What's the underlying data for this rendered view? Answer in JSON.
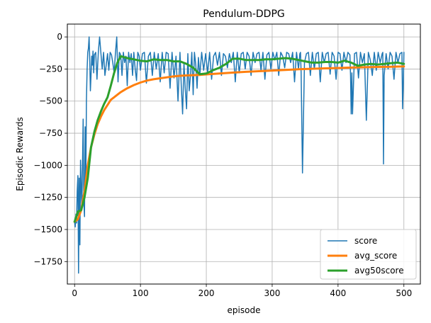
{
  "chart_data": {
    "type": "line",
    "title": "Pendulum-DDPG",
    "xlabel": "episode",
    "ylabel": "Episodic Rewards",
    "xlim": [
      -11,
      525
    ],
    "ylim": [
      -1925,
      100
    ],
    "xticks": [
      0,
      100,
      200,
      300,
      400,
      500
    ],
    "yticks": [
      0,
      -250,
      -500,
      -750,
      -1000,
      -1250,
      -1500,
      -1750
    ],
    "grid": true,
    "legend_position": "lower right",
    "series": [
      {
        "name": "score",
        "color": "#1f77b4",
        "style": "thin",
        "x": [
          0,
          1,
          2,
          3,
          4,
          5,
          6,
          7,
          8,
          9,
          10,
          11,
          12,
          13,
          14,
          15,
          16,
          17,
          18,
          19,
          20,
          21,
          22,
          23,
          24,
          25,
          26,
          27,
          28,
          29,
          30,
          32,
          34,
          36,
          38,
          40,
          42,
          44,
          46,
          48,
          50,
          52,
          54,
          56,
          58,
          60,
          62,
          64,
          66,
          68,
          70,
          72,
          74,
          76,
          78,
          80,
          82,
          84,
          86,
          88,
          90,
          92,
          94,
          96,
          98,
          100,
          103,
          106,
          109,
          112,
          115,
          118,
          121,
          124,
          127,
          130,
          133,
          136,
          139,
          142,
          145,
          148,
          151,
          154,
          157,
          160,
          162,
          164,
          166,
          168,
          170,
          172,
          174,
          176,
          178,
          180,
          182,
          184,
          186,
          188,
          190,
          193,
          196,
          199,
          202,
          205,
          208,
          211,
          214,
          217,
          220,
          223,
          226,
          229,
          232,
          235,
          238,
          241,
          244,
          247,
          250,
          253,
          256,
          259,
          262,
          265,
          268,
          271,
          274,
          277,
          280,
          283,
          286,
          289,
          292,
          295,
          298,
          301,
          304,
          307,
          310,
          313,
          316,
          319,
          322,
          325,
          328,
          331,
          334,
          337,
          340,
          342,
          343,
          344,
          346,
          349,
          352,
          355,
          358,
          361,
          364,
          367,
          370,
          373,
          376,
          379,
          382,
          385,
          388,
          391,
          394,
          397,
          400,
          403,
          406,
          409,
          412,
          415,
          418,
          419,
          420,
          421,
          422,
          425,
          428,
          431,
          434,
          437,
          440,
          443,
          446,
          449,
          452,
          455,
          458,
          461,
          464,
          467,
          468,
          469,
          470,
          473,
          476,
          479,
          482,
          485,
          488,
          491,
          494,
          497,
          498,
          499,
          500
        ],
        "y": [
          -1440,
          -1480,
          -1380,
          -1450,
          -1200,
          -1080,
          -1840,
          -1100,
          -1620,
          -960,
          -1150,
          -1350,
          -1000,
          -640,
          -1280,
          -1400,
          -700,
          -1200,
          -500,
          -250,
          -120,
          -90,
          0,
          -180,
          -420,
          -300,
          -150,
          -220,
          -110,
          -280,
          -140,
          -120,
          -330,
          -120,
          0,
          -130,
          -250,
          -120,
          -300,
          -220,
          -130,
          -260,
          -120,
          -140,
          -200,
          -280,
          -130,
          0,
          -350,
          -120,
          -140,
          -300,
          -120,
          -200,
          -150,
          -380,
          -120,
          -200,
          -130,
          -300,
          -120,
          -250,
          -340,
          -120,
          -150,
          -260,
          -130,
          -120,
          -360,
          -150,
          -120,
          -300,
          -120,
          -250,
          -130,
          -350,
          -120,
          -280,
          -120,
          -130,
          -400,
          -120,
          -320,
          -150,
          -500,
          -120,
          -380,
          -600,
          -200,
          -400,
          -560,
          -130,
          -420,
          -300,
          -120,
          -450,
          -120,
          -220,
          -400,
          -160,
          -300,
          -120,
          -260,
          -130,
          -280,
          -120,
          -330,
          -150,
          -120,
          -220,
          -120,
          -300,
          -130,
          -150,
          -240,
          -130,
          -200,
          -120,
          -350,
          -120,
          -280,
          -130,
          -120,
          -250,
          -120,
          -150,
          -300,
          -120,
          -200,
          -130,
          -120,
          -260,
          -120,
          -330,
          -140,
          -120,
          -250,
          -120,
          -180,
          -120,
          -300,
          -120,
          -150,
          -240,
          -120,
          -130,
          -200,
          -120,
          -350,
          -120,
          -250,
          -130,
          -120,
          -280,
          -1060,
          -200,
          -130,
          -120,
          -300,
          -120,
          -250,
          -130,
          -120,
          -350,
          -120,
          -200,
          -130,
          -120,
          -290,
          -120,
          -150,
          -330,
          -120,
          -130,
          -260,
          -120,
          -200,
          -120,
          -140,
          -300,
          -600,
          -280,
          -600,
          -130,
          -120,
          -320,
          -120,
          -200,
          -130,
          -650,
          -120,
          -180,
          -300,
          -120,
          -260,
          -120,
          -200,
          -130,
          -120,
          -990,
          -300,
          -130,
          -250,
          -120,
          -150,
          -330,
          -120,
          -200,
          -130,
          -120,
          -560,
          -400,
          -120
        ]
      },
      {
        "name": "avg_score",
        "color": "#ff7f0e",
        "style": "thick",
        "x": [
          0,
          5,
          10,
          15,
          20,
          25,
          30,
          35,
          40,
          45,
          50,
          55,
          60,
          65,
          70,
          75,
          80,
          90,
          100,
          110,
          120,
          130,
          140,
          150,
          160,
          170,
          180,
          190,
          200,
          220,
          240,
          260,
          280,
          300,
          320,
          340,
          360,
          380,
          400,
          420,
          440,
          460,
          480,
          500
        ],
        "y": [
          -1440,
          -1420,
          -1350,
          -1200,
          -1000,
          -860,
          -760,
          -680,
          -620,
          -570,
          -530,
          -490,
          -470,
          -450,
          -430,
          -415,
          -400,
          -375,
          -355,
          -340,
          -330,
          -322,
          -315,
          -308,
          -303,
          -300,
          -298,
          -296,
          -292,
          -285,
          -278,
          -272,
          -267,
          -262,
          -257,
          -252,
          -248,
          -245,
          -242,
          -239,
          -236,
          -234,
          -232,
          -230
        ]
      },
      {
        "name": "avg50score",
        "color": "#2ca02c",
        "style": "thick",
        "x": [
          0,
          5,
          10,
          15,
          20,
          25,
          30,
          35,
          40,
          45,
          50,
          55,
          60,
          65,
          70,
          80,
          90,
          100,
          110,
          120,
          130,
          140,
          150,
          160,
          170,
          180,
          185,
          190,
          200,
          210,
          220,
          230,
          240,
          250,
          260,
          270,
          280,
          290,
          300,
          310,
          320,
          330,
          340,
          350,
          360,
          370,
          380,
          390,
          400,
          410,
          420,
          430,
          440,
          450,
          460,
          470,
          480,
          490,
          500
        ],
        "y": [
          -1440,
          -1360,
          -1350,
          -1250,
          -1100,
          -860,
          -740,
          -650,
          -580,
          -520,
          -470,
          -380,
          -280,
          -200,
          -150,
          -165,
          -175,
          -185,
          -190,
          -175,
          -180,
          -180,
          -190,
          -190,
          -210,
          -240,
          -265,
          -290,
          -285,
          -260,
          -240,
          -210,
          -170,
          -170,
          -180,
          -180,
          -180,
          -175,
          -175,
          -170,
          -165,
          -170,
          -180,
          -190,
          -200,
          -200,
          -195,
          -195,
          -200,
          -185,
          -200,
          -225,
          -215,
          -210,
          -215,
          -210,
          -205,
          -200,
          -210
        ]
      }
    ]
  }
}
